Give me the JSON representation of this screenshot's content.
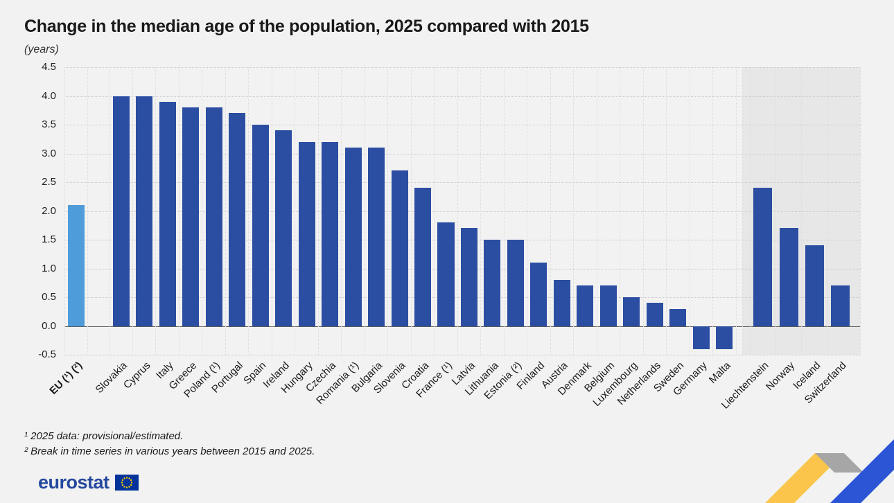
{
  "title": "Change in the median age of the population, 2025 compared with 2015",
  "subtitle": "(years)",
  "footnotes": [
    "¹ 2025 data: provisional/estimated.",
    "² Break in time series in various years between 2015 and 2025."
  ],
  "logo": {
    "text": "eurostat"
  },
  "colors": {
    "bar": "#2b4ea2",
    "eu_bar": "#4f9cdb",
    "efta_band": "#e7e7e7",
    "ribbon_yellow": "#fac54a",
    "ribbon_gray": "#a6a6a6",
    "ribbon_blue": "#2b55d4",
    "logo_blue": "#24489e",
    "flag_blue": "#003399",
    "flag_yellow": "#ffcc00"
  },
  "chart_data": {
    "type": "bar",
    "title": "Change in the median age of the population, 2025 compared with 2015",
    "ylabel": "(years)",
    "ylim": [
      -0.5,
      4.5
    ],
    "yticks": [
      4.5,
      4.0,
      3.5,
      3.0,
      2.5,
      2.0,
      1.5,
      1.0,
      0.5,
      0.0,
      -0.5
    ],
    "grid": true,
    "legend": "none",
    "bars": [
      {
        "label": "EU (¹) (²)",
        "value": 2.1,
        "group": "eu",
        "bold": true
      },
      {
        "label": "Slovakia",
        "value": 4.0,
        "group": "eu27"
      },
      {
        "label": "Cyprus",
        "value": 4.0,
        "group": "eu27"
      },
      {
        "label": "Italy",
        "value": 3.9,
        "group": "eu27"
      },
      {
        "label": "Greece",
        "value": 3.8,
        "group": "eu27"
      },
      {
        "label": "Poland (¹)",
        "value": 3.8,
        "group": "eu27"
      },
      {
        "label": "Portugal",
        "value": 3.7,
        "group": "eu27"
      },
      {
        "label": "Spain",
        "value": 3.5,
        "group": "eu27"
      },
      {
        "label": "Ireland",
        "value": 3.4,
        "group": "eu27"
      },
      {
        "label": "Hungary",
        "value": 3.2,
        "group": "eu27"
      },
      {
        "label": "Czechia",
        "value": 3.2,
        "group": "eu27"
      },
      {
        "label": "Romania (¹)",
        "value": 3.1,
        "group": "eu27"
      },
      {
        "label": "Bulgaria",
        "value": 3.1,
        "group": "eu27"
      },
      {
        "label": "Slovenia",
        "value": 2.7,
        "group": "eu27"
      },
      {
        "label": "Croatia",
        "value": 2.4,
        "group": "eu27"
      },
      {
        "label": "France (¹)",
        "value": 1.8,
        "group": "eu27"
      },
      {
        "label": "Latvia",
        "value": 1.7,
        "group": "eu27"
      },
      {
        "label": "Lithuania",
        "value": 1.5,
        "group": "eu27"
      },
      {
        "label": "Estonia (²)",
        "value": 1.5,
        "group": "eu27"
      },
      {
        "label": "Finland",
        "value": 1.1,
        "group": "eu27"
      },
      {
        "label": "Austria",
        "value": 0.8,
        "group": "eu27"
      },
      {
        "label": "Denmark",
        "value": 0.7,
        "group": "eu27"
      },
      {
        "label": "Belgium",
        "value": 0.7,
        "group": "eu27"
      },
      {
        "label": "Luxembourg",
        "value": 0.5,
        "group": "eu27"
      },
      {
        "label": "Netherlands",
        "value": 0.4,
        "group": "eu27"
      },
      {
        "label": "Sweden",
        "value": 0.3,
        "group": "eu27"
      },
      {
        "label": "Germany",
        "value": -0.4,
        "group": "eu27"
      },
      {
        "label": "Malta",
        "value": -0.4,
        "group": "eu27"
      },
      {
        "label": "Liechtenstein",
        "value": 2.4,
        "group": "efta"
      },
      {
        "label": "Norway",
        "value": 1.7,
        "group": "efta"
      },
      {
        "label": "Iceland",
        "value": 1.4,
        "group": "efta"
      },
      {
        "label": "Switzerland",
        "value": 0.7,
        "group": "efta"
      }
    ]
  }
}
